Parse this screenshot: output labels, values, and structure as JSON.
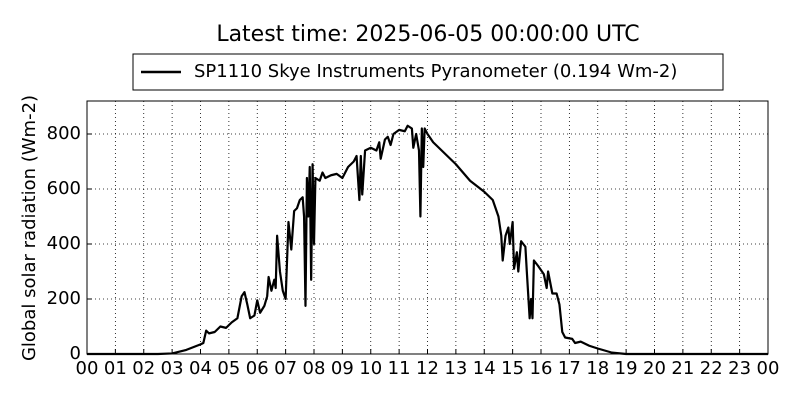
{
  "chart_data": {
    "type": "line",
    "title": "Latest time: 2025-06-05 00:00:00 UTC",
    "y_label": "Global solar radiation (Wm-2)",
    "x": [
      0,
      2.5,
      3.0,
      3.5,
      4.0,
      4.1,
      4.2,
      4.3,
      4.5,
      4.7,
      4.9,
      5.1,
      5.3,
      5.45,
      5.55,
      5.65,
      5.75,
      5.9,
      6.0,
      6.1,
      6.25,
      6.35,
      6.4,
      6.5,
      6.6,
      6.65,
      6.7,
      6.8,
      6.9,
      7.0,
      7.1,
      7.2,
      7.3,
      7.4,
      7.5,
      7.6,
      7.65,
      7.7,
      7.75,
      7.8,
      7.85,
      7.9,
      7.95,
      8.0,
      8.05,
      8.2,
      8.3,
      8.4,
      8.6,
      8.8,
      9.0,
      9.2,
      9.4,
      9.5,
      9.6,
      9.65,
      9.7,
      9.8,
      10.0,
      10.2,
      10.3,
      10.35,
      10.5,
      10.6,
      10.7,
      10.8,
      11.0,
      11.2,
      11.3,
      11.45,
      11.5,
      11.6,
      11.7,
      11.75,
      11.8,
      11.85,
      11.9,
      12.0,
      12.2,
      12.5,
      13.0,
      13.5,
      14.0,
      14.3,
      14.5,
      14.6,
      14.65,
      14.75,
      14.85,
      14.9,
      15.0,
      15.05,
      15.15,
      15.2,
      15.3,
      15.45,
      15.5,
      15.6,
      15.65,
      15.7,
      15.75,
      15.9,
      16.1,
      16.2,
      16.25,
      16.4,
      16.55,
      16.65,
      16.75,
      16.85,
      17.1,
      17.2,
      17.4,
      17.7,
      18.0,
      18.5,
      19.0,
      24
    ],
    "series": [
      {
        "name": "SP1110 Skye Instruments Pyranometer (0.194 Wm-2)",
        "color": "#000000",
        "values": [
          0,
          0,
          2,
          15,
          35,
          40,
          85,
          75,
          80,
          100,
          95,
          115,
          130,
          210,
          225,
          180,
          130,
          140,
          195,
          150,
          175,
          210,
          280,
          230,
          270,
          240,
          430,
          300,
          230,
          200,
          480,
          380,
          520,
          530,
          560,
          570,
          500,
          175,
          640,
          500,
          680,
          270,
          690,
          400,
          640,
          630,
          660,
          640,
          650,
          655,
          640,
          680,
          700,
          720,
          560,
          720,
          580,
          740,
          750,
          740,
          770,
          710,
          780,
          790,
          760,
          800,
          815,
          810,
          830,
          820,
          750,
          800,
          740,
          500,
          820,
          680,
          820,
          800,
          770,
          740,
          690,
          630,
          590,
          560,
          500,
          430,
          340,
          430,
          460,
          400,
          480,
          310,
          370,
          300,
          410,
          390,
          300,
          130,
          200,
          130,
          340,
          320,
          290,
          240,
          300,
          220,
          220,
          180,
          80,
          60,
          55,
          40,
          45,
          30,
          20,
          5,
          0,
          0
        ]
      }
    ],
    "xlim": [
      0,
      24
    ],
    "xticks": [
      {
        "value": 0,
        "label": "00"
      },
      {
        "value": 1,
        "label": "01"
      },
      {
        "value": 2,
        "label": "02"
      },
      {
        "value": 3,
        "label": "03"
      },
      {
        "value": 4,
        "label": "04"
      },
      {
        "value": 5,
        "label": "05"
      },
      {
        "value": 6,
        "label": "06"
      },
      {
        "value": 7,
        "label": "07"
      },
      {
        "value": 8,
        "label": "08"
      },
      {
        "value": 9,
        "label": "09"
      },
      10,
      11,
      12,
      13,
      14,
      15,
      16,
      17,
      18,
      19,
      20,
      21,
      22,
      23,
      {
        "value": 24,
        "label": "00"
      }
    ],
    "ylim": [
      0,
      920
    ],
    "yticks": [
      0,
      200,
      400,
      600,
      800
    ],
    "grid": true
  }
}
